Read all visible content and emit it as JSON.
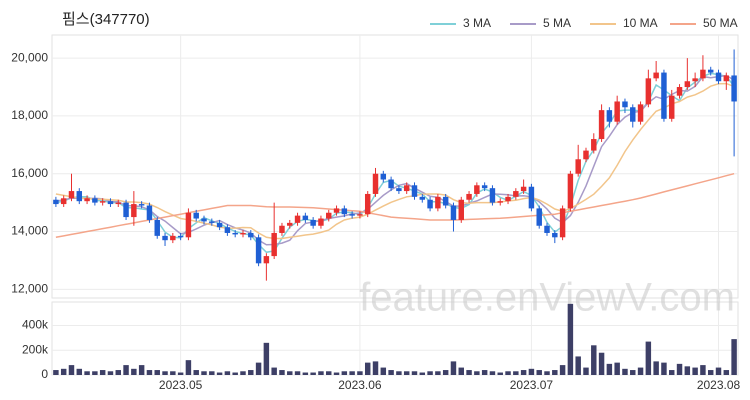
{
  "chart_data": {
    "type": "candlestick",
    "title": "핌스(347770)",
    "watermark": "feature.enViewV.com",
    "legend": "top-right",
    "grid": true,
    "up_color": "#e8302f",
    "down_color": "#1f5fd4",
    "categories": [
      null,
      null,
      null,
      null,
      null,
      null,
      null,
      null,
      null,
      null,
      null,
      null,
      null,
      null,
      null,
      null,
      "2023.05",
      null,
      null,
      null,
      null,
      null,
      null,
      null,
      null,
      null,
      null,
      null,
      null,
      null,
      null,
      null,
      null,
      null,
      null,
      null,
      null,
      null,
      null,
      "2023.06",
      null,
      null,
      null,
      null,
      null,
      null,
      null,
      null,
      null,
      null,
      null,
      null,
      null,
      null,
      null,
      null,
      null,
      null,
      null,
      null,
      null,
      "2023.07",
      null,
      null,
      null,
      null,
      null,
      null,
      null,
      null,
      null,
      null,
      null,
      null,
      null,
      null,
      null,
      null,
      null,
      null,
      null,
      null,
      null,
      null,
      null,
      "2023.08",
      null,
      null
    ],
    "open": [
      15100,
      14950,
      15150,
      15400,
      15050,
      15150,
      15000,
      15050,
      14950,
      15000,
      14500,
      14950,
      14900,
      14400,
      13850,
      13700,
      13850,
      13800,
      14650,
      14450,
      14350,
      14300,
      14150,
      13950,
      13900,
      13950,
      13800,
      12900,
      13150,
      13950,
      14200,
      14300,
      14550,
      14400,
      14200,
      14450,
      14650,
      14800,
      14600,
      14550,
      14600,
      15300,
      16000,
      15800,
      15500,
      15400,
      15600,
      15200,
      15100,
      14800,
      15200,
      14900,
      14400,
      15100,
      15300,
      15600,
      15500,
      15000,
      15050,
      15200,
      15400,
      15550,
      14800,
      14200,
      13950,
      13800,
      14800,
      16000,
      16500,
      16800,
      17200,
      18200,
      17800,
      18500,
      18300,
      17800,
      18400,
      19300,
      19500,
      17900,
      18700,
      19000,
      19200,
      19300,
      19600,
      19500,
      19200,
      19400
    ],
    "high": [
      15200,
      15250,
      16000,
      15500,
      15250,
      15250,
      15150,
      15150,
      15100,
      15100,
      15400,
      15050,
      15000,
      14500,
      13950,
      13950,
      13950,
      14800,
      14750,
      14550,
      14450,
      14400,
      14250,
      14050,
      14050,
      14050,
      13900,
      13250,
      15000,
      14300,
      14400,
      14650,
      14650,
      14500,
      14550,
      14750,
      14900,
      14900,
      14700,
      14700,
      15400,
      16200,
      16100,
      15900,
      15600,
      15700,
      15700,
      15300,
      15200,
      15300,
      15300,
      15000,
      15200,
      15400,
      15700,
      15700,
      15600,
      15150,
      15300,
      15500,
      15800,
      15650,
      14900,
      14300,
      14050,
      14900,
      16100,
      17000,
      16900,
      17400,
      18400,
      18300,
      18700,
      18600,
      18400,
      18500,
      19600,
      19900,
      19600,
      18900,
      19100,
      20000,
      19500,
      20100,
      19700,
      19600,
      19500,
      20300
    ],
    "low": [
      14850,
      14850,
      15050,
      14950,
      14950,
      14900,
      14900,
      14850,
      14850,
      14400,
      14200,
      14800,
      14300,
      13750,
      13500,
      13600,
      13700,
      13700,
      14350,
      14250,
      14200,
      14050,
      13850,
      13800,
      13800,
      13700,
      12800,
      12300,
      13050,
      13850,
      14100,
      14200,
      14300,
      14100,
      14100,
      14350,
      14550,
      14500,
      14450,
      14450,
      14500,
      15200,
      15700,
      15400,
      15300,
      15300,
      15100,
      15000,
      14700,
      14700,
      14800,
      14000,
      14300,
      15000,
      15200,
      15400,
      14900,
      14900,
      14950,
      15100,
      15300,
      14700,
      14100,
      13850,
      13600,
      13700,
      14700,
      15900,
      16400,
      16700,
      17100,
      17600,
      17700,
      18100,
      17600,
      17700,
      18300,
      19200,
      17800,
      17800,
      18600,
      18900,
      19000,
      19200,
      19400,
      19100,
      18900,
      16600
    ],
    "close": [
      14950,
      15150,
      15400,
      15050,
      15150,
      15000,
      15050,
      14950,
      15000,
      14500,
      14950,
      14900,
      14400,
      13850,
      13700,
      13850,
      13800,
      14650,
      14450,
      14350,
      14300,
      14150,
      13950,
      13900,
      13950,
      13800,
      12900,
      13150,
      13950,
      14200,
      14300,
      14550,
      14400,
      14200,
      14450,
      14650,
      14800,
      14600,
      14550,
      14600,
      15300,
      16000,
      15800,
      15500,
      15400,
      15600,
      15200,
      15100,
      14800,
      15200,
      14900,
      14400,
      15100,
      15300,
      15600,
      15500,
      15000,
      15050,
      15200,
      15400,
      15550,
      14800,
      14200,
      13950,
      13800,
      14800,
      16000,
      16500,
      16800,
      17200,
      18200,
      17800,
      18500,
      18300,
      17800,
      18400,
      19300,
      19500,
      17900,
      18700,
      19000,
      19200,
      19300,
      19600,
      19500,
      19200,
      19400,
      18500
    ],
    "ylim": [
      11700,
      20800
    ],
    "yticks": [
      {
        "value": 12000,
        "label": "12,000"
      },
      {
        "value": 14000,
        "label": "14,000"
      },
      {
        "value": 16000,
        "label": "16,000"
      },
      {
        "value": 18000,
        "label": "18,000"
      },
      {
        "value": 20000,
        "label": "20,000"
      }
    ],
    "series": [
      {
        "name": "3 MA",
        "color": "#7fd0d8",
        "values": [
          15000,
          15050,
          15170,
          15200,
          15200,
          15070,
          15070,
          15000,
          15000,
          14820,
          14820,
          14780,
          14750,
          14380,
          13980,
          13800,
          13780,
          14100,
          14300,
          14480,
          14370,
          14270,
          14130,
          14000,
          13930,
          13880,
          13550,
          13280,
          13330,
          13770,
          14150,
          14350,
          14420,
          14380,
          14350,
          14430,
          14630,
          14680,
          14650,
          14580,
          14820,
          15300,
          15700,
          15770,
          15570,
          15500,
          15400,
          15300,
          15030,
          15030,
          14970,
          14830,
          14800,
          14930,
          15330,
          15470,
          15370,
          15180,
          15080,
          15220,
          15380,
          15250,
          14850,
          14320,
          13980,
          14180,
          14870,
          15770,
          16430,
          16830,
          17400,
          17730,
          18170,
          18200,
          18200,
          18170,
          18500,
          19070,
          18900,
          18700,
          18530,
          18970,
          19170,
          19370,
          19470,
          19430,
          19370,
          19030
        ]
      },
      {
        "name": "5 MA",
        "color": "#a89bc8",
        "values": [
          15050,
          15100,
          15150,
          15150,
          15140,
          15150,
          15130,
          15040,
          15030,
          14890,
          14890,
          14860,
          14750,
          14520,
          14360,
          14140,
          13920,
          13970,
          14090,
          14220,
          14310,
          14380,
          14240,
          14130,
          14050,
          13950,
          13700,
          13540,
          13550,
          13600,
          13700,
          14030,
          14280,
          14330,
          14380,
          14450,
          14500,
          14540,
          14610,
          14640,
          14770,
          15010,
          15250,
          15440,
          15600,
          15660,
          15500,
          15360,
          15220,
          15180,
          15040,
          14880,
          14880,
          14980,
          15060,
          15180,
          15300,
          15290,
          15270,
          15230,
          15240,
          15200,
          15030,
          14780,
          14460,
          14310,
          14550,
          15010,
          15580,
          16260,
          16940,
          17300,
          17700,
          17960,
          18120,
          18160,
          18460,
          18660,
          18580,
          18740,
          18880,
          18860,
          19020,
          19360,
          19320,
          19360,
          19400,
          19240
        ]
      },
      {
        "name": "10 MA",
        "color": "#f2c58b",
        "values": [
          15300,
          15250,
          15200,
          15150,
          15150,
          15120,
          15120,
          15100,
          15080,
          15020,
          15020,
          15000,
          14950,
          14830,
          14690,
          14570,
          14450,
          14410,
          14350,
          14290,
          14230,
          14150,
          14110,
          14120,
          14140,
          14130,
          13950,
          13800,
          13760,
          13760,
          13800,
          13840,
          13880,
          13910,
          13970,
          14050,
          14250,
          14400,
          14460,
          14500,
          14600,
          14740,
          14880,
          15010,
          15110,
          15200,
          15240,
          15290,
          15300,
          15300,
          15260,
          15100,
          15000,
          14980,
          15000,
          15000,
          15000,
          15020,
          15060,
          15080,
          15140,
          15180,
          15090,
          14950,
          14780,
          14700,
          14800,
          14950,
          15110,
          15290,
          15560,
          15860,
          16290,
          16770,
          17170,
          17530,
          17860,
          18160,
          18270,
          18420,
          18500,
          18650,
          18730,
          18860,
          19030,
          19110,
          19120,
          19020
        ]
      },
      {
        "name": "50 MA",
        "color": "#f4a58a",
        "values": [
          13800,
          13850,
          13900,
          13950,
          14000,
          14050,
          14100,
          14150,
          14200,
          14250,
          14300,
          14350,
          14400,
          14450,
          14500,
          14550,
          14600,
          14650,
          14700,
          14750,
          14800,
          14850,
          14900,
          14900,
          14900,
          14900,
          14880,
          14860,
          14850,
          14850,
          14850,
          14840,
          14830,
          14820,
          14800,
          14780,
          14760,
          14740,
          14720,
          14700,
          14650,
          14600,
          14550,
          14500,
          14480,
          14460,
          14440,
          14420,
          14400,
          14400,
          14400,
          14400,
          14410,
          14420,
          14430,
          14440,
          14450,
          14460,
          14480,
          14500,
          14520,
          14540,
          14560,
          14580,
          14600,
          14650,
          14700,
          14750,
          14800,
          14850,
          14900,
          14950,
          15000,
          15050,
          15100,
          15160,
          15230,
          15300,
          15370,
          15440,
          15510,
          15580,
          15650,
          15720,
          15790,
          15860,
          15930,
          16000
        ]
      }
    ],
    "volume": {
      "color": "#3d3f66",
      "values": [
        40000,
        50000,
        80000,
        50000,
        30000,
        30000,
        40000,
        30000,
        40000,
        80000,
        50000,
        80000,
        40000,
        40000,
        30000,
        30000,
        20000,
        120000,
        40000,
        30000,
        30000,
        20000,
        30000,
        20000,
        30000,
        40000,
        100000,
        260000,
        60000,
        40000,
        30000,
        30000,
        20000,
        20000,
        30000,
        30000,
        20000,
        30000,
        30000,
        30000,
        100000,
        110000,
        60000,
        40000,
        30000,
        30000,
        30000,
        20000,
        30000,
        30000,
        40000,
        110000,
        60000,
        40000,
        30000,
        40000,
        30000,
        20000,
        30000,
        30000,
        40000,
        50000,
        40000,
        30000,
        40000,
        80000,
        575000,
        150000,
        60000,
        240000,
        180000,
        90000,
        100000,
        50000,
        40000,
        60000,
        270000,
        110000,
        100000,
        40000,
        90000,
        70000,
        60000,
        80000,
        40000,
        60000,
        40000,
        290000
      ],
      "ylim": [
        0,
        590000
      ],
      "yticks": [
        0,
        {
          "value": 200000,
          "label": "200k"
        },
        {
          "value": 400000,
          "label": "400k"
        }
      ]
    }
  }
}
